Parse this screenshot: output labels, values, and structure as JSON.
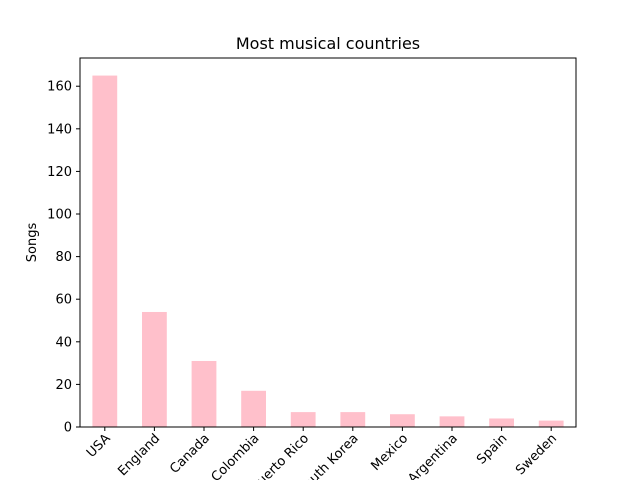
{
  "chart_data": {
    "type": "bar",
    "title": "Most musical countries",
    "xlabel": "",
    "ylabel": "Songs",
    "categories": [
      "USA",
      "England",
      "Canada",
      "Colombia",
      "Puerto Rico",
      "South Korea",
      "Mexico",
      "Argentina",
      "Spain",
      "Sweden"
    ],
    "values": [
      165,
      54,
      31,
      17,
      7,
      7,
      6,
      5,
      4,
      3
    ],
    "ylim": [
      0,
      173.25
    ],
    "yticks": [
      0,
      20,
      40,
      60,
      80,
      100,
      120,
      140,
      160
    ],
    "bar_color": "#ffc0cb",
    "grid": false,
    "legend": "none"
  }
}
